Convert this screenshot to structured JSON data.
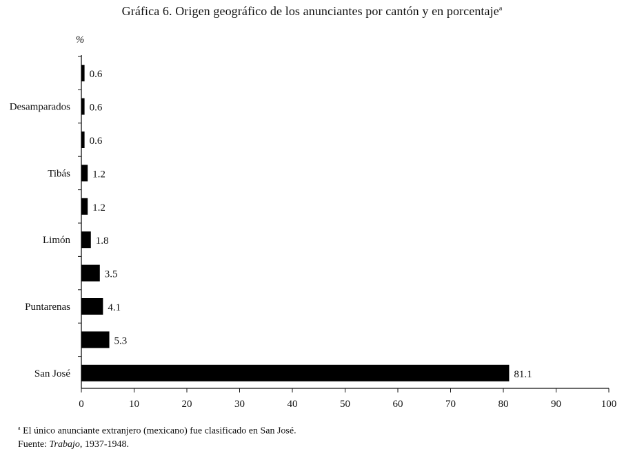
{
  "title": {
    "text": "Gráfica 6. Origen geográfico de los anunciantes por cantón y en porcentaje",
    "superscript": "a"
  },
  "footnote": {
    "marker": "a",
    "note": " El único anunciante extranjero (mexicano) fue clasificado en San José.",
    "source_label": "Fuente: ",
    "source_italic": "Trabajo",
    "source_rest": ", 1937-1948."
  },
  "chart_data": {
    "type": "bar",
    "orientation": "horizontal",
    "ylabel": "%",
    "xlim": [
      0,
      100
    ],
    "xticks": [
      0,
      10,
      20,
      30,
      40,
      50,
      60,
      70,
      80,
      90,
      100
    ],
    "categories": [
      "",
      "Desamparados",
      "",
      "Tibás",
      "",
      "Limón",
      "",
      "Puntarenas",
      "",
      "San José"
    ],
    "values": [
      0.6,
      0.6,
      0.6,
      1.2,
      1.2,
      1.8,
      3.5,
      4.1,
      5.3,
      81.1
    ],
    "value_labels": [
      "0.6",
      "0.6",
      "0.6",
      "1.2",
      "1.2",
      "1.8",
      "3.5",
      "4.1",
      "5.3",
      "81.1"
    ],
    "bar_color": "#000000",
    "grid": false
  }
}
